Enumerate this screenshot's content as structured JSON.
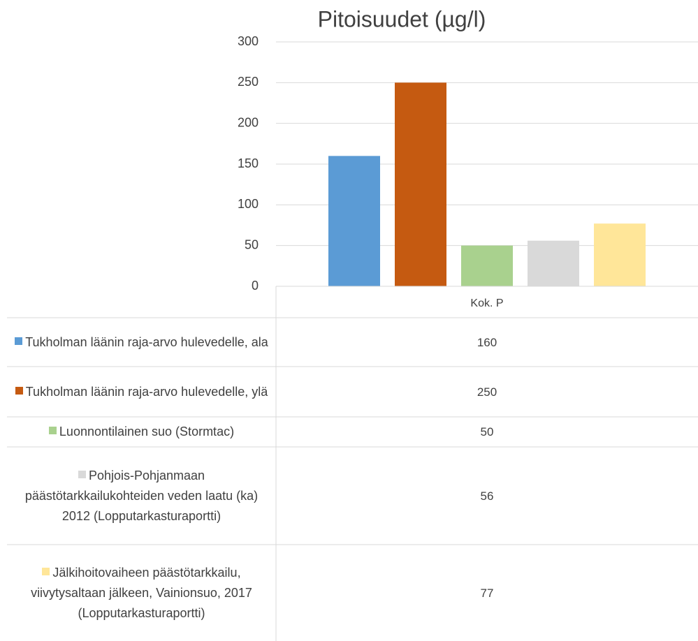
{
  "chart_data": {
    "type": "bar",
    "title": "Pitoisuudet (µg/l)",
    "categories": [
      "Kok. P"
    ],
    "series": [
      {
        "name": "Tukholman läänin raja-arvo hulevedelle, ala",
        "color": "#5b9bd5",
        "values": [
          160
        ]
      },
      {
        "name": "Tukholman läänin raja-arvo hulevedelle, ylä",
        "color": "#c55a11",
        "values": [
          250
        ]
      },
      {
        "name": "Luonnontilainen suo (Stormtac)",
        "color": "#a9d18e",
        "values": [
          50
        ]
      },
      {
        "name": "Pohjois-Pohjanmaan päästötarkkailukohteiden veden laatu (ka) 2012 (Lopputarkasturaportti)",
        "color": "#d9d9d9",
        "values": [
          56
        ]
      },
      {
        "name": "Jälkihoitovaiheen päästötarkkailu, viivytysaltaan jälkeen, Vainionsuo, 2017 (Lopputarkasturaportti)",
        "color": "#ffe699",
        "values": [
          77
        ]
      }
    ],
    "ylim": [
      0,
      300
    ],
    "yticks": [
      0,
      50,
      100,
      150,
      200,
      250,
      300
    ],
    "grid": true,
    "data_table": true
  }
}
